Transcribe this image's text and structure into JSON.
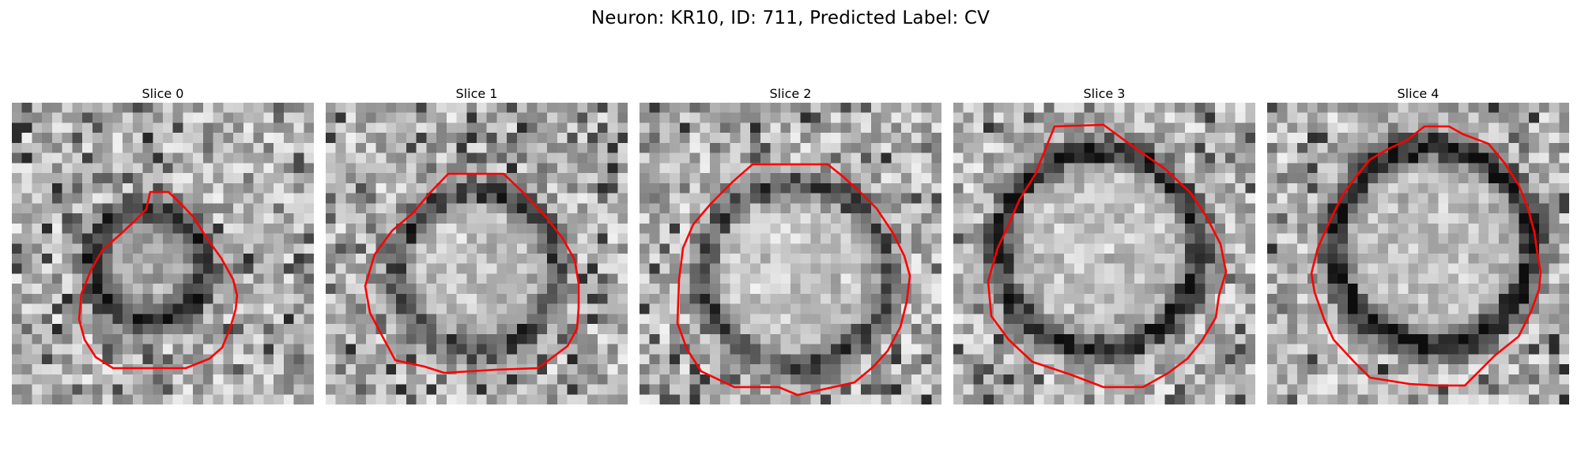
{
  "figure": {
    "title": "Neuron: KR10, ID: 711, Predicted Label: CV"
  },
  "panels": [
    {
      "title": "Slice 0"
    },
    {
      "title": "Slice 1"
    },
    {
      "title": "Slice 2"
    },
    {
      "title": "Slice 3"
    },
    {
      "title": "Slice 4"
    }
  ],
  "colors": {
    "contour": "#ff0000",
    "background": "#ffffff"
  },
  "image_style": "grayscale pixelated microscopy slice with red cell outline"
}
